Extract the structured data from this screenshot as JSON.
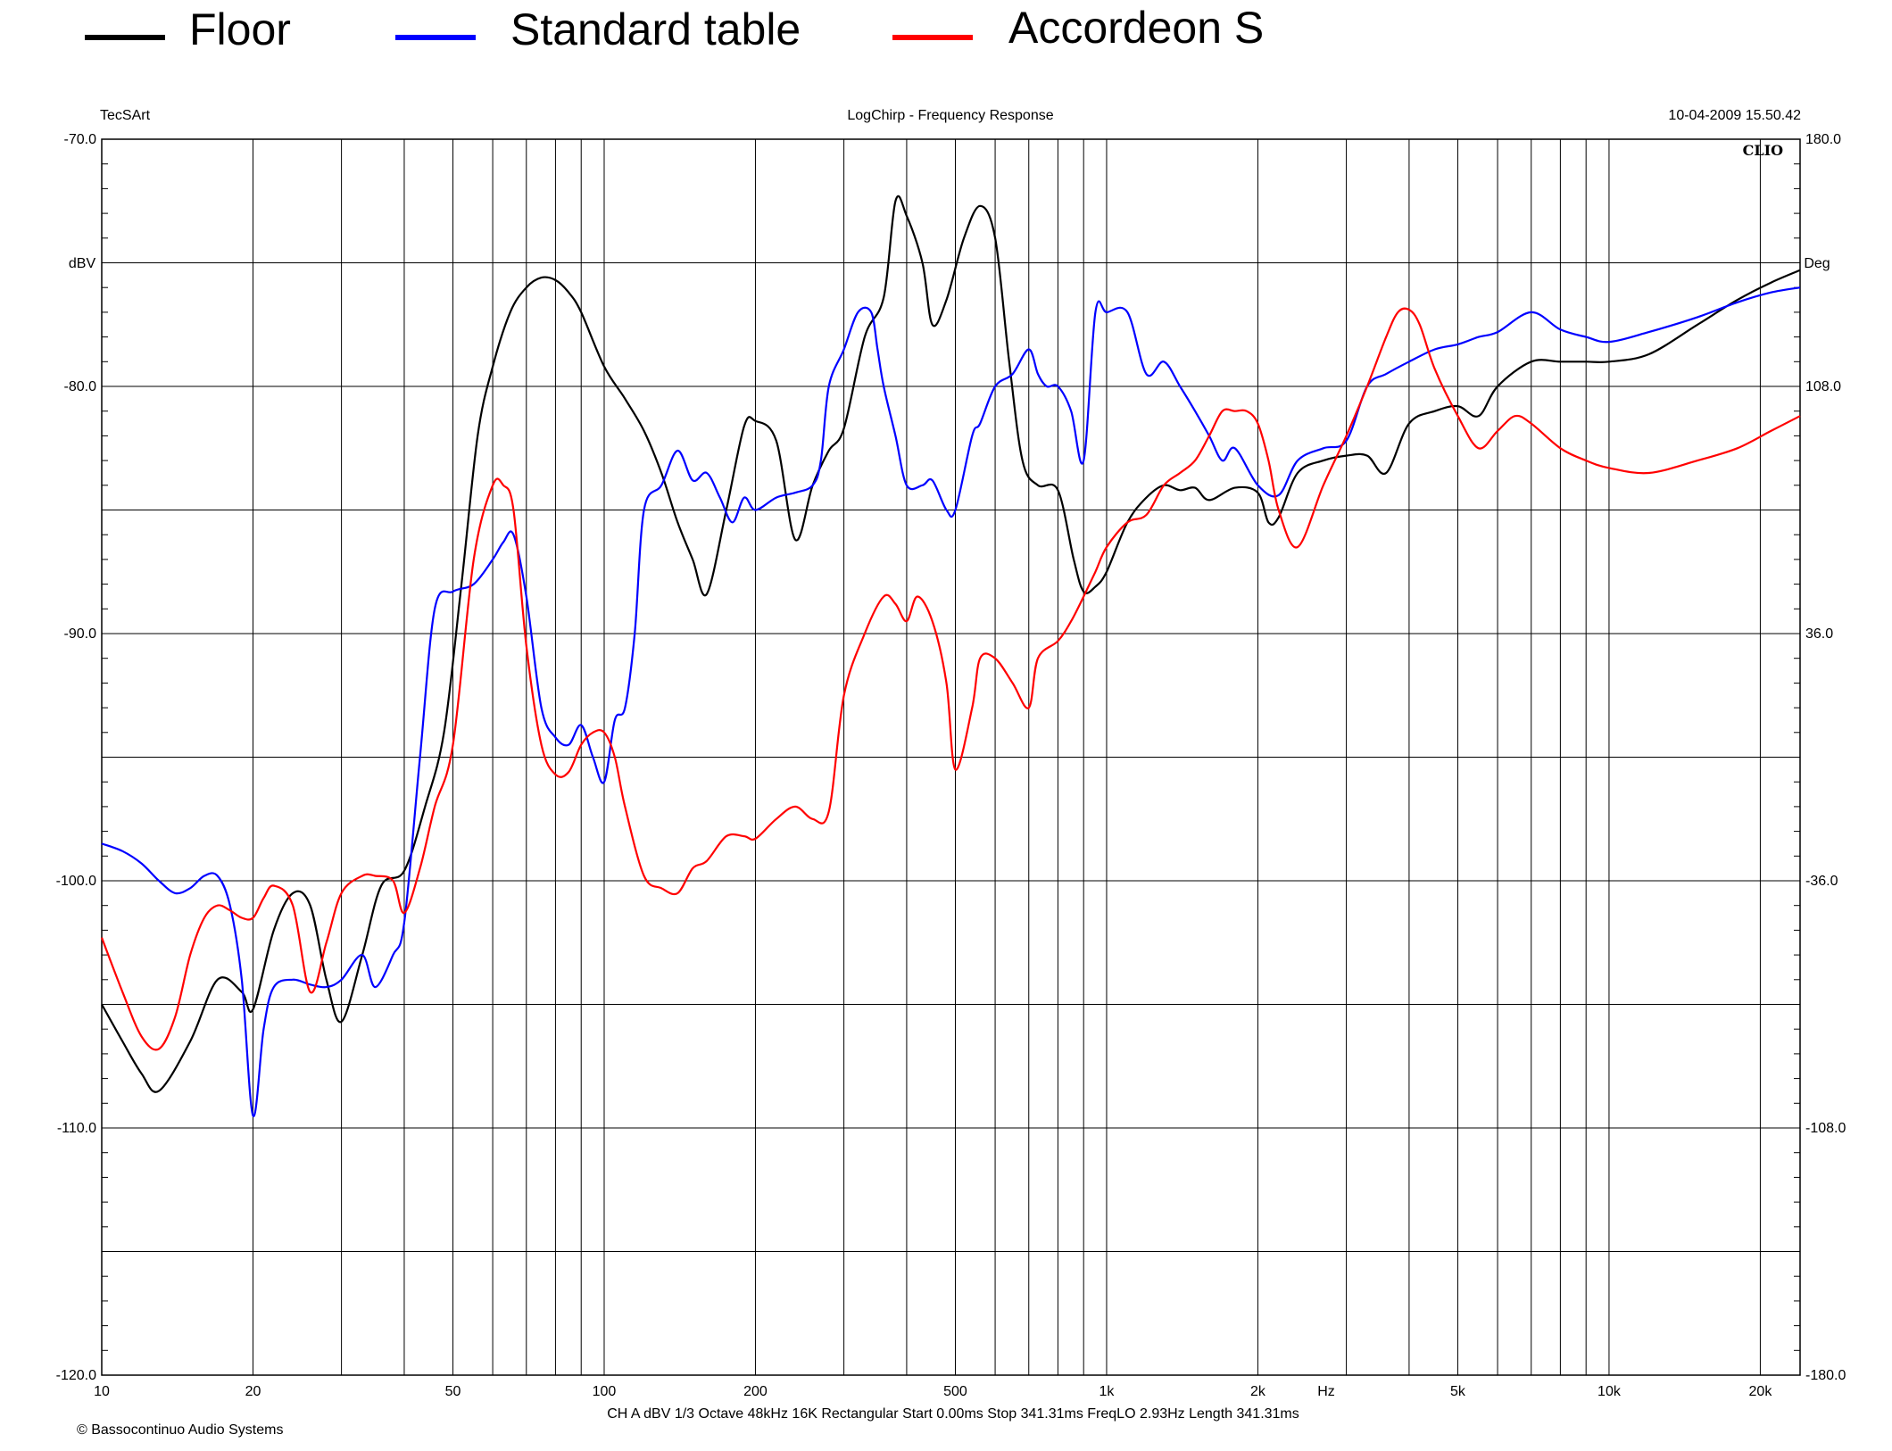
{
  "chart_data": {
    "type": "line",
    "legend": [
      {
        "name": "Floor",
        "color": "#000000"
      },
      {
        "name": "Standard table",
        "color": "#0000ff"
      },
      {
        "name": "Accordeon S",
        "color": "#ff0000"
      }
    ],
    "header": {
      "left": "TecSArt",
      "center": "LogChirp - Frequency Response",
      "right": "10-04-2009 15.50.42"
    },
    "brand": "CLIO",
    "xscale": "log",
    "xlim": [
      10,
      24000
    ],
    "ylim": [
      -120,
      -70
    ],
    "y2lim": [
      -180,
      180
    ],
    "grid": true,
    "ylabel": "dBV",
    "y2label": "Deg",
    "xlabel": "Hz",
    "x_ticks": [
      {
        "v": 10,
        "label": "10"
      },
      {
        "v": 20,
        "label": "20"
      },
      {
        "v": 50,
        "label": "50"
      },
      {
        "v": 100,
        "label": "100"
      },
      {
        "v": 200,
        "label": "200"
      },
      {
        "v": 500,
        "label": "500"
      },
      {
        "v": 1000,
        "label": "1k"
      },
      {
        "v": 2000,
        "label": "2k"
      },
      {
        "v": 5000,
        "label": "5k"
      },
      {
        "v": 10000,
        "label": "10k"
      },
      {
        "v": 20000,
        "label": "20k"
      }
    ],
    "y_ticks": [
      {
        "v": -70,
        "label": "-70.0"
      },
      {
        "v": -80,
        "label": "-80.0"
      },
      {
        "v": -90,
        "label": "-90.0"
      },
      {
        "v": -100,
        "label": "-100.0"
      },
      {
        "v": -110,
        "label": "-110.0"
      },
      {
        "v": -120,
        "label": "-120.0"
      }
    ],
    "y2_ticks": [
      {
        "v": 180,
        "label": "180.0"
      },
      {
        "v": 108,
        "label": "108.0"
      },
      {
        "v": 36,
        "label": "36.0"
      },
      {
        "v": -36,
        "label": "-36.0"
      },
      {
        "v": -108,
        "label": "-108.0"
      },
      {
        "v": -180,
        "label": "-180.0"
      }
    ],
    "footer": "CH A   dBV   1/3 Octave   48kHz   16K   Rectangular   Start 0.00ms   Stop 341.31ms   FreqLO 2.93Hz   Length 341.31ms",
    "copyright": "© Bassocontinuo Audio Systems",
    "series": [
      {
        "name": "Floor",
        "color": "#000000",
        "x": [
          10,
          11,
          12,
          13,
          15,
          17,
          19,
          20,
          22,
          24,
          26,
          28,
          30,
          33,
          36,
          40,
          44,
          48,
          52,
          56,
          60,
          65,
          70,
          75,
          80,
          85,
          90,
          100,
          110,
          120,
          130,
          140,
          150,
          160,
          175,
          190,
          200,
          220,
          240,
          260,
          280,
          300,
          330,
          360,
          380,
          400,
          430,
          450,
          480,
          520,
          560,
          600,
          640,
          680,
          730,
          800,
          860,
          900,
          950,
          1000,
          1100,
          1200,
          1300,
          1400,
          1500,
          1600,
          1800,
          2000,
          2100,
          2200,
          2400,
          2700,
          3000,
          3300,
          3600,
          4000,
          4500,
          5000,
          5500,
          6000,
          7000,
          8000,
          9000,
          10000,
          12000,
          15000,
          18000,
          21000,
          24000
        ],
        "y": [
          -105,
          -106.5,
          -107.8,
          -108.5,
          -106.5,
          -104,
          -104.5,
          -105.2,
          -102,
          -100.5,
          -101,
          -104,
          -105.7,
          -103,
          -100.2,
          -99.6,
          -97,
          -94,
          -88,
          -82,
          -79.2,
          -77,
          -76,
          -75.6,
          -75.7,
          -76.2,
          -77,
          -79.2,
          -80.5,
          -81.8,
          -83.5,
          -85.5,
          -87,
          -88.4,
          -85,
          -81.6,
          -81.4,
          -82.2,
          -86.2,
          -84,
          -82.6,
          -81.7,
          -78,
          -76.4,
          -72.5,
          -73.1,
          -75,
          -77.5,
          -76.5,
          -74,
          -72.7,
          -74,
          -79,
          -83,
          -84,
          -84.2,
          -87,
          -88.3,
          -88.1,
          -87.5,
          -85.5,
          -84.5,
          -84,
          -84.2,
          -84.1,
          -84.6,
          -84.1,
          -84.3,
          -85.5,
          -85.3,
          -83.5,
          -83,
          -82.8,
          -82.8,
          -83.5,
          -81.5,
          -81,
          -80.8,
          -81.2,
          -80,
          -79,
          -79,
          -79,
          -79,
          -78.7,
          -77.5,
          -76.5,
          -75.8,
          -75.3
        ]
      },
      {
        "name": "Standard table",
        "color": "#0000ff",
        "x": [
          10,
          11,
          12,
          13,
          14,
          15,
          16,
          17,
          18,
          19,
          20,
          21,
          22,
          24,
          26,
          28,
          30,
          33,
          35,
          38,
          40,
          43,
          46,
          50,
          55,
          60,
          63,
          66,
          70,
          75,
          80,
          85,
          90,
          95,
          100,
          105,
          110,
          115,
          120,
          130,
          140,
          150,
          160,
          170,
          180,
          190,
          200,
          220,
          240,
          260,
          270,
          280,
          300,
          320,
          340,
          350,
          360,
          380,
          400,
          430,
          450,
          480,
          500,
          540,
          560,
          600,
          650,
          700,
          730,
          760,
          800,
          850,
          900,
          950,
          1000,
          1100,
          1200,
          1300,
          1400,
          1500,
          1600,
          1700,
          1800,
          2000,
          2200,
          2400,
          2700,
          3000,
          3300,
          3600,
          4000,
          4500,
          5000,
          5500,
          6000,
          7000,
          8000,
          9000,
          10000,
          12000,
          15000,
          18000,
          21000,
          24000
        ],
        "y": [
          -98.5,
          -98.8,
          -99.3,
          -100,
          -100.5,
          -100.3,
          -99.8,
          -99.8,
          -101,
          -104,
          -109.5,
          -106,
          -104.3,
          -104,
          -104.2,
          -104.3,
          -104,
          -103,
          -104.3,
          -103,
          -101.7,
          -95,
          -89,
          -88.3,
          -88,
          -87,
          -86.3,
          -86,
          -88.5,
          -93,
          -94.2,
          -94.5,
          -93.7,
          -95,
          -96,
          -93.5,
          -93,
          -90,
          -85,
          -84,
          -82.6,
          -83.8,
          -83.5,
          -84.5,
          -85.5,
          -84.5,
          -85,
          -84.5,
          -84.3,
          -84,
          -83,
          -80,
          -78.5,
          -77,
          -77,
          -78.5,
          -80,
          -82,
          -84,
          -84,
          -83.8,
          -85,
          -85,
          -82,
          -81.5,
          -80,
          -79.5,
          -78.5,
          -79.5,
          -80,
          -80,
          -81,
          -83,
          -77,
          -77,
          -77,
          -79.5,
          -79,
          -80,
          -81,
          -82,
          -83,
          -82.5,
          -84,
          -84.4,
          -83,
          -82.5,
          -82.2,
          -80,
          -79.5,
          -79,
          -78.5,
          -78.3,
          -78,
          -77.8,
          -77,
          -77.7,
          -78,
          -78.2,
          -77.8,
          -77.2,
          -76.6,
          -76.2,
          -76
        ]
      },
      {
        "name": "Accordeon S",
        "color": "#ff0000",
        "x": [
          10,
          11,
          12,
          13,
          14,
          15,
          16,
          17,
          18,
          19,
          20,
          21,
          22,
          24,
          26,
          28,
          30,
          33,
          35,
          38,
          40,
          43,
          46,
          50,
          55,
          60,
          63,
          66,
          70,
          75,
          80,
          85,
          90,
          95,
          100,
          105,
          110,
          120,
          130,
          140,
          150,
          160,
          175,
          190,
          200,
          220,
          240,
          260,
          280,
          300,
          330,
          360,
          380,
          400,
          420,
          450,
          480,
          500,
          540,
          560,
          600,
          650,
          700,
          730,
          800,
          850,
          900,
          950,
          1000,
          1100,
          1200,
          1300,
          1400,
          1500,
          1600,
          1700,
          1800,
          1900,
          2000,
          2100,
          2200,
          2400,
          2700,
          3000,
          3300,
          3600,
          3800,
          4000,
          4200,
          4500,
          5000,
          5500,
          6000,
          6500,
          7000,
          8000,
          9000,
          10000,
          12000,
          15000,
          18000,
          21000,
          24000
        ],
        "y": [
          -102.3,
          -104.5,
          -106.3,
          -106.8,
          -105.5,
          -103,
          -101.5,
          -101,
          -101.2,
          -101.5,
          -101.5,
          -100.7,
          -100.2,
          -101,
          -104.5,
          -102.5,
          -100.5,
          -99.8,
          -99.8,
          -100,
          -101.3,
          -99.5,
          -97,
          -94.5,
          -87,
          -84,
          -84,
          -85,
          -90.5,
          -94.5,
          -95.7,
          -95.6,
          -94.5,
          -94,
          -94,
          -95,
          -97,
          -99.8,
          -100.3,
          -100.5,
          -99.5,
          -99.2,
          -98.2,
          -98.2,
          -98.3,
          -97.5,
          -97,
          -97.5,
          -97.2,
          -92.5,
          -90,
          -88.5,
          -88.8,
          -89.5,
          -88.5,
          -89.5,
          -92,
          -95.5,
          -93,
          -91,
          -91,
          -92,
          -93,
          -91,
          -90.3,
          -89.5,
          -88.5,
          -87.5,
          -86.5,
          -85.5,
          -85.2,
          -84,
          -83.5,
          -83,
          -82,
          -81,
          -81,
          -81,
          -81.5,
          -83,
          -85,
          -86.5,
          -84,
          -82,
          -80,
          -78,
          -77,
          -76.9,
          -77.5,
          -79.3,
          -81.2,
          -82.5,
          -81.8,
          -81.2,
          -81.5,
          -82.5,
          -83,
          -83.3,
          -83.5,
          -83,
          -82.5,
          -81.8,
          -81.2
        ]
      }
    ]
  }
}
